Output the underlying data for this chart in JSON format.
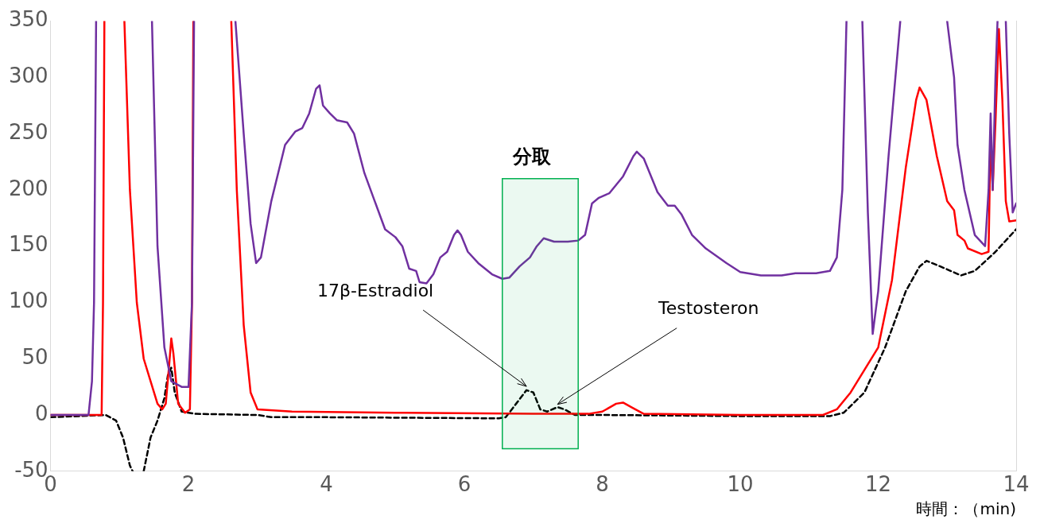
{
  "chart_data": {
    "type": "line",
    "xlabel": "時間：（min)",
    "xlim": [
      0,
      14
    ],
    "xticks": [
      0,
      2,
      4,
      6,
      8,
      10,
      12,
      14
    ],
    "ylim": [
      -50,
      350
    ],
    "yticks": [
      -50,
      0,
      50,
      100,
      150,
      200,
      250,
      300,
      350
    ],
    "grid": false,
    "legend": false,
    "marker": "none",
    "series": [
      {
        "color": "#7030a0",
        "line_style": "solid",
        "x": [
          0,
          0.55,
          0.6,
          0.63,
          0.66,
          0.67,
          1.47,
          1.55,
          1.65,
          1.75,
          1.9,
          2.0,
          2.05,
          2.08,
          2.09,
          2.68,
          2.8,
          2.9,
          2.98,
          3.05,
          3.2,
          3.4,
          3.55,
          3.65,
          3.75,
          3.85,
          3.9,
          3.95,
          4.05,
          4.15,
          4.3,
          4.4,
          4.55,
          4.7,
          4.85,
          5.0,
          5.1,
          5.2,
          5.3,
          5.35,
          5.45,
          5.55,
          5.65,
          5.75,
          5.85,
          5.9,
          5.95,
          6.05,
          6.2,
          6.4,
          6.55,
          6.65,
          6.8,
          6.95,
          7.05,
          7.15,
          7.3,
          7.5,
          7.65,
          7.75,
          7.85,
          7.95,
          8.1,
          8.3,
          8.45,
          8.5,
          8.6,
          8.8,
          8.95,
          9.05,
          9.15,
          9.3,
          9.5,
          9.8,
          10.0,
          10.3,
          10.6,
          10.8,
          11.1,
          11.3,
          11.4,
          11.48,
          11.54,
          11.6,
          11.77,
          11.85,
          11.92,
          12.0,
          12.15,
          12.32,
          12.5,
          13.0,
          13.1,
          13.15,
          13.25,
          13.4,
          13.55,
          13.6,
          13.63,
          13.66,
          13.7,
          13.73,
          13.8,
          13.85,
          13.9,
          13.95,
          14.0
        ],
        "values": [
          0,
          0,
          30,
          100,
          350,
          null,
          350,
          150,
          60,
          30,
          25,
          25,
          100,
          350,
          null,
          350,
          250,
          170,
          135,
          140,
          190,
          240,
          252,
          255,
          268,
          290,
          293,
          275,
          268,
          262,
          260,
          250,
          215,
          190,
          165,
          158,
          150,
          130,
          128,
          118,
          117,
          125,
          140,
          145,
          160,
          164,
          160,
          145,
          135,
          125,
          121,
          122,
          132,
          140,
          150,
          157,
          154,
          154,
          155,
          160,
          188,
          193,
          197,
          212,
          230,
          234,
          228,
          198,
          186,
          186,
          178,
          160,
          148,
          135,
          127,
          124,
          124,
          126,
          126,
          128,
          140,
          200,
          350,
          null,
          350,
          180,
          72,
          110,
          230,
          350,
          null,
          350,
          300,
          240,
          200,
          160,
          150,
          200,
          268,
          200,
          300,
          350,
          null,
          350,
          250,
          180,
          188
        ]
      },
      {
        "color": "#ff0000",
        "line_style": "solid",
        "x": [
          0,
          0.74,
          0.76,
          0.78,
          0.8,
          1.07,
          1.15,
          1.25,
          1.35,
          1.45,
          1.55,
          1.62,
          1.67,
          1.72,
          1.75,
          1.78,
          1.85,
          1.95,
          2.02,
          2.05,
          2.07,
          2.1,
          2.62,
          2.7,
          2.8,
          2.9,
          3.0,
          3.5,
          5,
          7,
          7.8,
          8.0,
          8.2,
          8.3,
          8.45,
          8.6,
          10,
          11.2,
          11.4,
          11.6,
          11.8,
          12.0,
          12.2,
          12.4,
          12.55,
          12.6,
          12.7,
          12.85,
          13.0,
          13.1,
          13.15,
          13.25,
          13.3,
          13.5,
          13.6,
          13.63,
          13.66,
          13.7,
          13.75,
          13.8,
          13.85,
          13.9,
          14.0
        ],
        "values": [
          0,
          0,
          100,
          350,
          null,
          350,
          200,
          100,
          50,
          30,
          10,
          5,
          10,
          45,
          68,
          55,
          10,
          2,
          5,
          100,
          350,
          null,
          350,
          200,
          80,
          20,
          5,
          3,
          2,
          1,
          1,
          3,
          10,
          11,
          6,
          1,
          0,
          0,
          5,
          20,
          40,
          60,
          120,
          220,
          280,
          291,
          280,
          230,
          190,
          182,
          160,
          155,
          148,
          143,
          145,
          250,
          200,
          260,
          343,
          280,
          190,
          172,
          173
        ]
      },
      {
        "color": "#000000",
        "line_style": "dashed",
        "x": [
          0,
          0.8,
          0.95,
          1.05,
          1.15,
          1.19,
          1.25,
          1.35,
          1.45,
          1.55,
          1.65,
          1.7,
          1.75,
          1.8,
          1.9,
          2.1,
          3.0,
          3.2,
          4,
          6.5,
          6.6,
          6.75,
          6.9,
          7.0,
          7.1,
          7.2,
          7.35,
          7.45,
          7.6,
          8,
          10,
          11.3,
          11.5,
          11.8,
          12.1,
          12.4,
          12.6,
          12.7,
          12.9,
          13.2,
          13.4,
          13.7,
          14.0
        ],
        "values": [
          -2,
          0,
          -5,
          -20,
          -45,
          -50,
          null,
          -50,
          -20,
          -5,
          15,
          35,
          42,
          20,
          3,
          1,
          0,
          -2,
          -2,
          -3,
          -2,
          10,
          22,
          20,
          5,
          3,
          7,
          5,
          0,
          0,
          -1,
          -1,
          2,
          20,
          60,
          110,
          132,
          137,
          132,
          124,
          128,
          145,
          165
        ]
      }
    ],
    "bands": [
      {
        "axis": "x",
        "from": 6.55,
        "to": 7.65,
        "label": "分取",
        "color": "#00b050"
      }
    ],
    "annotations": [
      {
        "text": "17β-Estradiol",
        "x": 6.9,
        "y": 24
      },
      {
        "text": "Testosteron",
        "x": 7.35,
        "y": 8
      }
    ]
  }
}
